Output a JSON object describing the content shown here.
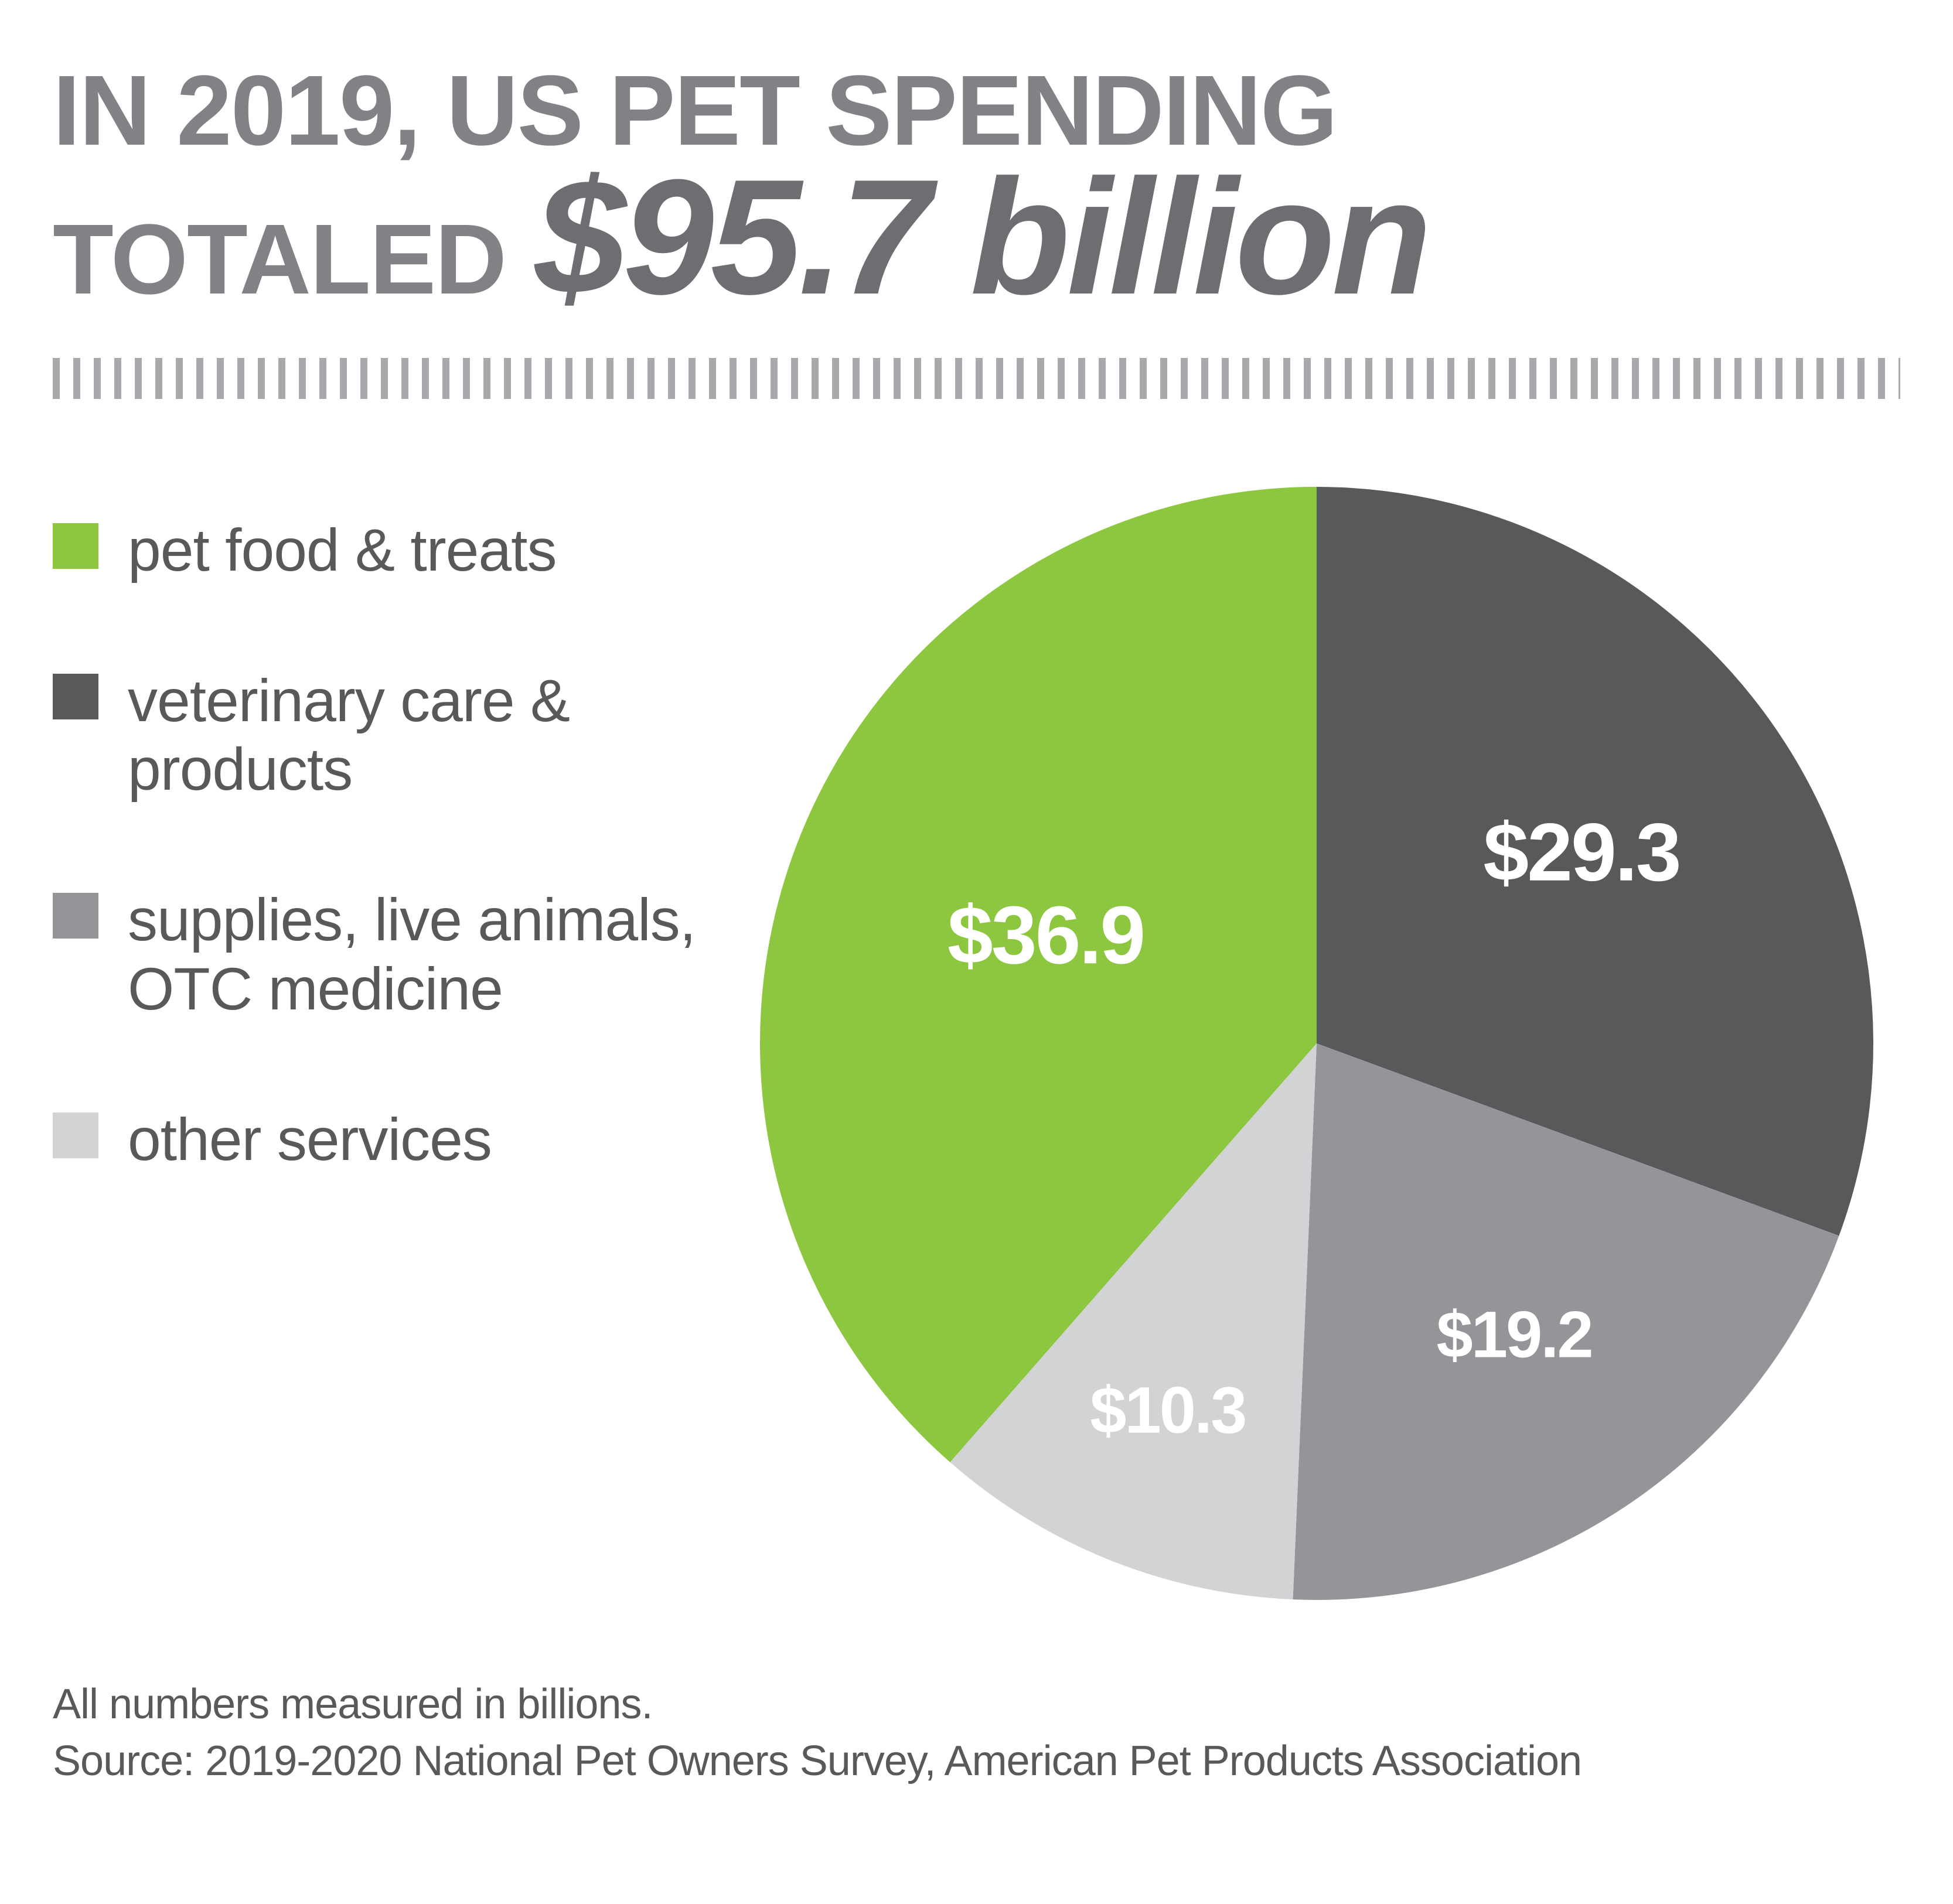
{
  "headline": {
    "line1": "IN 2019, US PET SPENDING",
    "line2_prefix": "TOTALED",
    "big_number": "$95.7 billion"
  },
  "chart": {
    "type": "pie",
    "background_color": "#ffffff",
    "label_color": "#ffffff",
    "label_fontsize": 140,
    "slices": [
      {
        "key": "pet_food",
        "label": "pet food & treats",
        "value": 36.9,
        "display": "$36.9",
        "color": "#8dc63f"
      },
      {
        "key": "vet_care",
        "label": "veterinary care & products",
        "value": 29.3,
        "display": "$29.3",
        "color": "#58595b"
      },
      {
        "key": "supplies",
        "label": "supplies, live animals, OTC medicine",
        "value": 19.2,
        "display": "$19.2",
        "color": "#939598"
      },
      {
        "key": "other",
        "label": "other services",
        "value": 10.3,
        "display": "$10.3",
        "color": "#d1d3d4"
      }
    ],
    "start_angle_deg": -90,
    "direction": "clockwise",
    "radius": 950
  },
  "legend": {
    "swatch_size": 78,
    "label_fontsize": 102,
    "label_color": "#58595b"
  },
  "footnote": {
    "line1": "All numbers measured in billions.",
    "line2": "Source: 2019-2020 National Pet Owners Survey, American Pet Products Association"
  },
  "colors": {
    "headline_gray": "#808285",
    "headline_dark": "#6d6e71",
    "body_text": "#58595b",
    "ruler_tick": "#a7a9ac"
  }
}
